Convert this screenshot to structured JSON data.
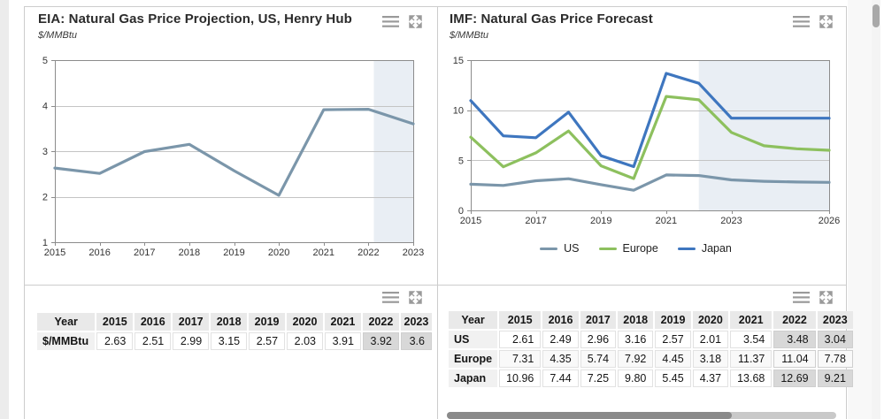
{
  "panels": {
    "eia_chart": {
      "title": "EIA: Natural Gas Price Projection, US, Henry Hub",
      "subtitle": "$/MMBtu"
    },
    "imf_chart": {
      "title": "IMF: Natural Gas Price Forecast",
      "subtitle": "$/MMBtu"
    }
  },
  "icons": {
    "menu": "menu",
    "expand": "expand-fullscreen"
  },
  "chart_data": [
    {
      "id": "eia",
      "type": "line",
      "title": "EIA: Natural Gas Price Projection, US, Henry Hub",
      "ylabel": "$/MMBtu",
      "x": [
        2015,
        2016,
        2017,
        2018,
        2019,
        2020,
        2021,
        2022,
        2023
      ],
      "series": [
        {
          "name": "Henry Hub",
          "color": "#7b96aa",
          "values": [
            2.63,
            2.51,
            2.99,
            3.15,
            2.57,
            2.03,
            3.91,
            3.92,
            3.6
          ]
        }
      ],
      "xlim": [
        2015,
        2023
      ],
      "ylim": [
        1,
        5
      ],
      "yticks": [
        1,
        2,
        3,
        4,
        5
      ],
      "xticks": [
        2015,
        2016,
        2017,
        2018,
        2019,
        2020,
        2021,
        2022,
        2023
      ],
      "grid": true,
      "legend": false,
      "forecast_from": 2022.12,
      "forecast_fill": "#e9eef4"
    },
    {
      "id": "imf",
      "type": "line",
      "title": "IMF: Natural Gas Price Forecast",
      "ylabel": "$/MMBtu",
      "x": [
        2015,
        2016,
        2017,
        2018,
        2019,
        2020,
        2021,
        2022,
        2023,
        2024,
        2025,
        2026
      ],
      "series": [
        {
          "name": "US",
          "color": "#7b96aa",
          "values": [
            2.61,
            2.49,
            2.96,
            3.16,
            2.57,
            2.01,
            3.54,
            3.48,
            3.04,
            2.9,
            2.83,
            2.8
          ]
        },
        {
          "name": "Europe",
          "color": "#8dc05e",
          "values": [
            7.31,
            4.35,
            5.74,
            7.92,
            4.45,
            3.18,
            11.37,
            11.04,
            7.78,
            6.45,
            6.15,
            6.0
          ]
        },
        {
          "name": "Japan",
          "color": "#3e76bf",
          "values": [
            10.96,
            7.44,
            7.25,
            9.8,
            5.45,
            4.37,
            13.68,
            12.69,
            9.21,
            9.2,
            9.2,
            9.2
          ]
        }
      ],
      "xlim": [
        2015,
        2026
      ],
      "ylim": [
        0,
        15
      ],
      "yticks": [
        0,
        5,
        10,
        15
      ],
      "xticks": [
        2015,
        2017,
        2019,
        2021,
        2023,
        2026
      ],
      "grid": true,
      "legend": true,
      "legend_position": "bottom",
      "forecast_from": 2022,
      "forecast_fill": "#e9eef4"
    }
  ],
  "tables": [
    {
      "id": "eia",
      "header": [
        "Year",
        "2015",
        "2016",
        "2017",
        "2018",
        "2019",
        "2020",
        "2021",
        "2022",
        "2023"
      ],
      "rows": [
        {
          "label": "$/MMBtu",
          "values": [
            "2.63",
            "2.51",
            "2.99",
            "3.15",
            "2.57",
            "2.03",
            "3.91",
            "3.92",
            "3.6"
          ]
        }
      ],
      "forecast_value_indices": [
        7,
        8
      ]
    },
    {
      "id": "imf",
      "header": [
        "Year",
        "2015",
        "2016",
        "2017",
        "2018",
        "2019",
        "2020",
        "2021",
        "2022",
        "2023"
      ],
      "rows": [
        {
          "label": "US",
          "values": [
            "2.61",
            "2.49",
            "2.96",
            "3.16",
            "2.57",
            "2.01",
            "3.54",
            "3.48",
            "3.04"
          ]
        },
        {
          "label": "Europe",
          "values": [
            "7.31",
            "4.35",
            "5.74",
            "7.92",
            "4.45",
            "3.18",
            "11.37",
            "11.04",
            "7.78"
          ]
        },
        {
          "label": "Japan",
          "values": [
            "10.96",
            "7.44",
            "7.25",
            "9.80",
            "5.45",
            "4.37",
            "13.68",
            "12.69",
            "9.21"
          ]
        }
      ],
      "forecast_value_indices": [
        7,
        8
      ]
    }
  ]
}
